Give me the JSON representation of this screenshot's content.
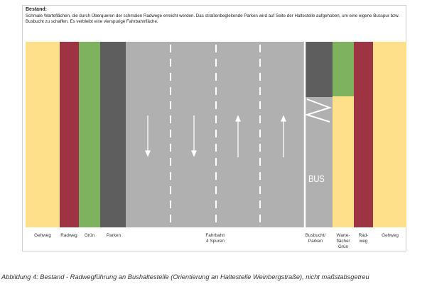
{
  "header": {
    "title": "Bestand:",
    "description": "Schmale Warteflächen, die durch Überqueren der schmalen Radwege erreicht werden. Das straßenbegleitende Parken wird auf Seite der Haltestelle aufgehoben, um eine eigene Busspur bzw. Busbucht zu schaffen. Es verbleibt eine vierspurige Fahrbahnfläche."
  },
  "colors": {
    "gehweg": "#ffe08a",
    "radweg": "#9e3344",
    "gruen": "#7fb25f",
    "parken": "#5e5e5e",
    "fahrbahn": "#b0b0b0",
    "marking": "#ffffff"
  },
  "labels": {
    "gehweg_left": "Gehweg",
    "radweg_left": "Radweg",
    "gruen": "Grün",
    "parken": "Parken",
    "fahrbahn_line1": "Fahrbahn",
    "fahrbahn_line2": "4 Spuren",
    "busbucht_line1": "Busbucht/",
    "busbucht_line2": "Parken",
    "wartefl_line1": "Warte-",
    "wartefl_line2": "fläche/",
    "wartefl_line3": "Grün",
    "radweg_right_line1": "Rad-",
    "radweg_right_line2": "weg",
    "gehweg_right": "Gehweg"
  },
  "bus_marking": "BUS",
  "icons": {
    "lane_arrow_down": "arrow-down-icon",
    "lane_arrow_up": "arrow-up-icon"
  },
  "caption": "Abbildung 4: Bestand - Radwegführung an Bushaltestelle (Orientierung an Haltestelle Weinbergstraße), nicht maßstabsgetreu"
}
